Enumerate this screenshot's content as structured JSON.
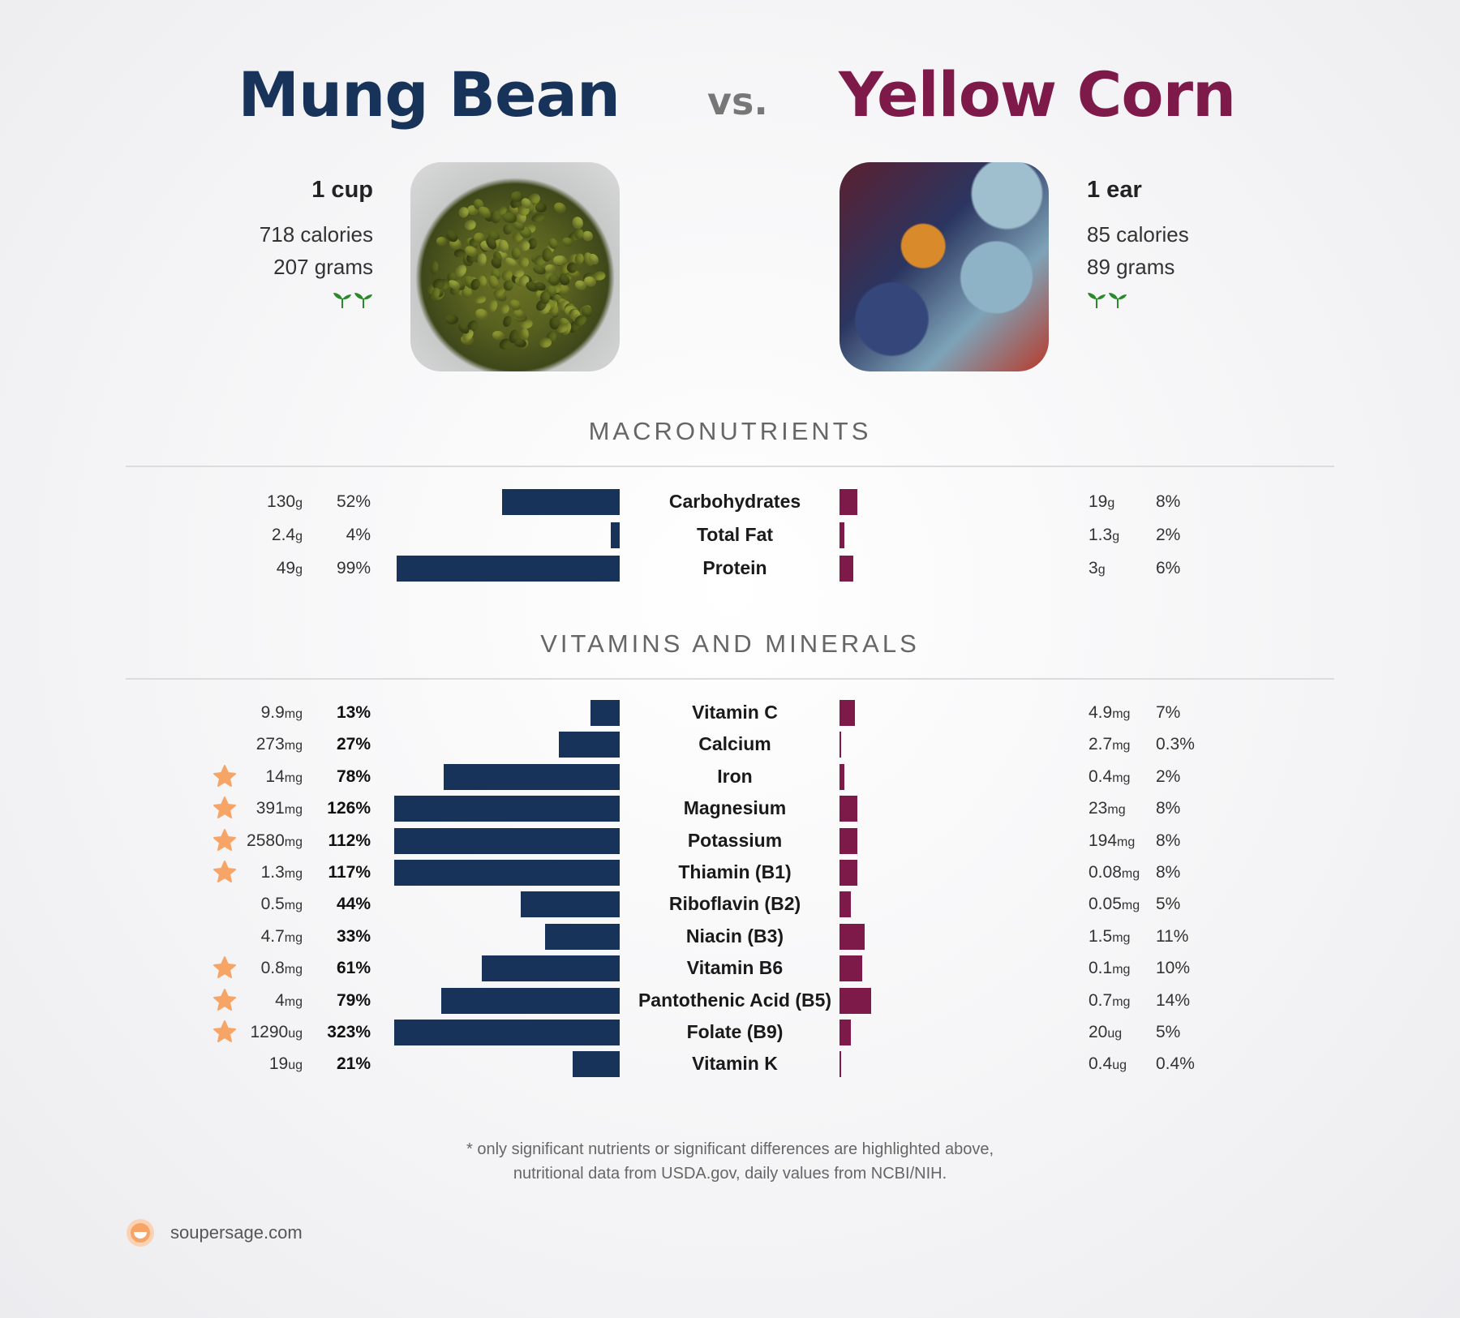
{
  "header": {
    "left_title": "Mung Bean",
    "vs": "vs.",
    "right_title": "Yellow Corn"
  },
  "left_food": {
    "serving": "1 cup",
    "calories": "718 calories",
    "grams": "207 grams",
    "icon": "sprout-icon"
  },
  "right_food": {
    "serving": "1 ear",
    "calories": "85 calories",
    "grams": "89 grams",
    "icon": "sprout-icon"
  },
  "colors": {
    "left": "#17335a",
    "right": "#7e1a4a",
    "star": "#f7a467",
    "sprout": "#2a8a2a"
  },
  "sections": {
    "macros": "MACRONUTRIENTS",
    "vitamins": "VITAMINS AND MINERALS"
  },
  "chart_data": [
    {
      "type": "bar",
      "title": "MACRONUTRIENTS",
      "categories": [
        "Carbohydrates",
        "Total Fat",
        "Protein"
      ],
      "series": [
        {
          "name": "Mung Bean",
          "amounts": [
            "130",
            "2.4",
            "49"
          ],
          "units": [
            "g",
            "g",
            "g"
          ],
          "percent_labels": [
            "52%",
            "4%",
            "99%"
          ],
          "values": [
            52,
            4,
            99
          ]
        },
        {
          "name": "Yellow Corn",
          "amounts": [
            "19",
            "1.3",
            "3"
          ],
          "units": [
            "g",
            "g",
            "g"
          ],
          "percent_labels": [
            "8%",
            "2%",
            "6%"
          ],
          "values": [
            8,
            2,
            6
          ]
        }
      ],
      "max_display": 100
    },
    {
      "type": "bar",
      "title": "VITAMINS AND MINERALS",
      "categories": [
        "Vitamin C",
        "Calcium",
        "Iron",
        "Magnesium",
        "Potassium",
        "Thiamin (B1)",
        "Riboflavin (B2)",
        "Niacin (B3)",
        "Vitamin B6",
        "Pantothenic Acid (B5)",
        "Folate (B9)",
        "Vitamin K"
      ],
      "series": [
        {
          "name": "Mung Bean",
          "amounts": [
            "9.9",
            "273",
            "14",
            "391",
            "2580",
            "1.3",
            "0.5",
            "4.7",
            "0.8",
            "4",
            "1290",
            "19"
          ],
          "units": [
            "mg",
            "mg",
            "mg",
            "mg",
            "mg",
            "mg",
            "mg",
            "mg",
            "mg",
            "mg",
            "ug",
            "ug"
          ],
          "percent_labels": [
            "13%",
            "27%",
            "78%",
            "126%",
            "112%",
            "117%",
            "44%",
            "33%",
            "61%",
            "79%",
            "323%",
            "21%"
          ],
          "values": [
            13,
            27,
            78,
            126,
            112,
            117,
            44,
            33,
            61,
            79,
            323,
            21
          ],
          "starred": [
            false,
            false,
            true,
            true,
            true,
            true,
            false,
            false,
            true,
            true,
            true,
            false
          ]
        },
        {
          "name": "Yellow Corn",
          "amounts": [
            "4.9",
            "2.7",
            "0.4",
            "23",
            "194",
            "0.08",
            "0.05",
            "1.5",
            "0.1",
            "0.7",
            "20",
            "0.4"
          ],
          "units": [
            "mg",
            "mg",
            "mg",
            "mg",
            "mg",
            "mg",
            "mg",
            "mg",
            "mg",
            "mg",
            "ug",
            "ug"
          ],
          "percent_labels": [
            "7%",
            "0.3%",
            "2%",
            "8%",
            "8%",
            "8%",
            "5%",
            "11%",
            "10%",
            "14%",
            "5%",
            "0.4%"
          ],
          "values": [
            7,
            0.3,
            2,
            8,
            8,
            8,
            5,
            11,
            10,
            14,
            5,
            0.4
          ]
        }
      ],
      "max_display": 100
    }
  ],
  "footnote": {
    "line1": "* only significant nutrients or significant differences are highlighted above,",
    "line2": "nutritional data from USDA.gov, daily values from NCBI/NIH."
  },
  "brand": {
    "text": "soupersage.com",
    "icon": "soupersage-logo-icon"
  }
}
